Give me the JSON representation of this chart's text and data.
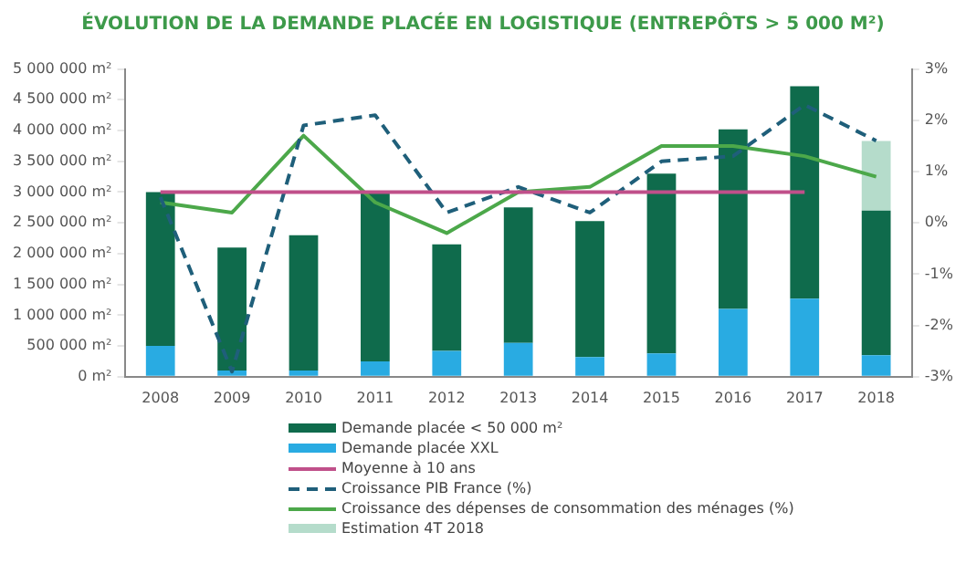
{
  "chart_data": {
    "type": "bar",
    "title": "ÉVOLUTION DE LA DEMANDE PLACÉE EN LOGISTIQUE (ENTREPÔTS > 5 000 M²)",
    "stacked": true,
    "legend": "bottom",
    "categories": [
      "2008",
      "2009",
      "2010",
      "2011",
      "2012",
      "2013",
      "2014",
      "2015",
      "2016",
      "2017",
      "2018"
    ],
    "series": [
      {
        "name": "Demande placée XXL",
        "color": "#29abe2",
        "values": [
          500000,
          100000,
          100000,
          250000,
          420000,
          550000,
          320000,
          380000,
          1100000,
          1270000,
          350000
        ]
      },
      {
        "name": "Demande placée < 50 000 m²",
        "color": "#0f6b4c",
        "values": [
          2500000,
          2000000,
          2200000,
          2730000,
          1730000,
          2200000,
          2210000,
          2920000,
          2920000,
          3450000,
          2350000
        ]
      },
      {
        "name": "Estimation 4T 2018",
        "color": "#b5dccb",
        "values": [
          null,
          null,
          null,
          null,
          null,
          null,
          null,
          null,
          null,
          null,
          1130000
        ]
      },
      {
        "name": "Moyenne à 10 ans",
        "type": "line",
        "color": "#c0508a",
        "values": [
          3000000,
          3000000,
          3000000,
          3000000,
          3000000,
          3000000,
          3000000,
          3000000,
          3000000,
          3000000,
          null
        ]
      },
      {
        "name": "Croissance PIB France (%)",
        "type": "line",
        "axis": "y2",
        "line_style": "dashed",
        "color": "#1f5f7a",
        "values": [
          0.5,
          -2.9,
          1.9,
          2.1,
          0.2,
          0.7,
          0.2,
          1.2,
          1.3,
          2.3,
          1.6
        ]
      },
      {
        "name": "Croissance des dépenses de consommation des ménages (%)",
        "type": "line",
        "axis": "y2",
        "line_style": "solid",
        "color": "#4ca84a",
        "values": [
          0.4,
          0.2,
          1.7,
          0.4,
          -0.2,
          0.6,
          0.7,
          1.5,
          1.5,
          1.3,
          0.9
        ]
      }
    ],
    "ylim": [
      0,
      5000000
    ],
    "yticks": [
      {
        "value": 0,
        "label": "0 m²"
      },
      {
        "value": 500000,
        "label": "500 000 m²"
      },
      {
        "value": 1000000,
        "label": "1 000 000 m²"
      },
      {
        "value": 1500000,
        "label": "1 500 000 m²"
      },
      {
        "value": 2000000,
        "label": "2 000 000 m²"
      },
      {
        "value": 2500000,
        "label": "2 500 000 m²"
      },
      {
        "value": 3000000,
        "label": "3 000 000 m²"
      },
      {
        "value": 3500000,
        "label": "3 500 000 m²"
      },
      {
        "value": 4000000,
        "label": "4 000 000 m²"
      },
      {
        "value": 4500000,
        "label": "4 500 000 m²"
      },
      {
        "value": 5000000,
        "label": "5 000 000 m²"
      }
    ],
    "y2lim": [
      -3,
      3
    ],
    "y2ticks": [
      {
        "value": -3,
        "label": "-3%"
      },
      {
        "value": -2,
        "label": "-2%"
      },
      {
        "value": -1,
        "label": "-1%"
      },
      {
        "value": 0,
        "label": "0%"
      },
      {
        "value": 1,
        "label": "1%"
      },
      {
        "value": 2,
        "label": "2%"
      },
      {
        "value": 3,
        "label": "3%"
      }
    ],
    "grid": false,
    "marker": "none"
  }
}
